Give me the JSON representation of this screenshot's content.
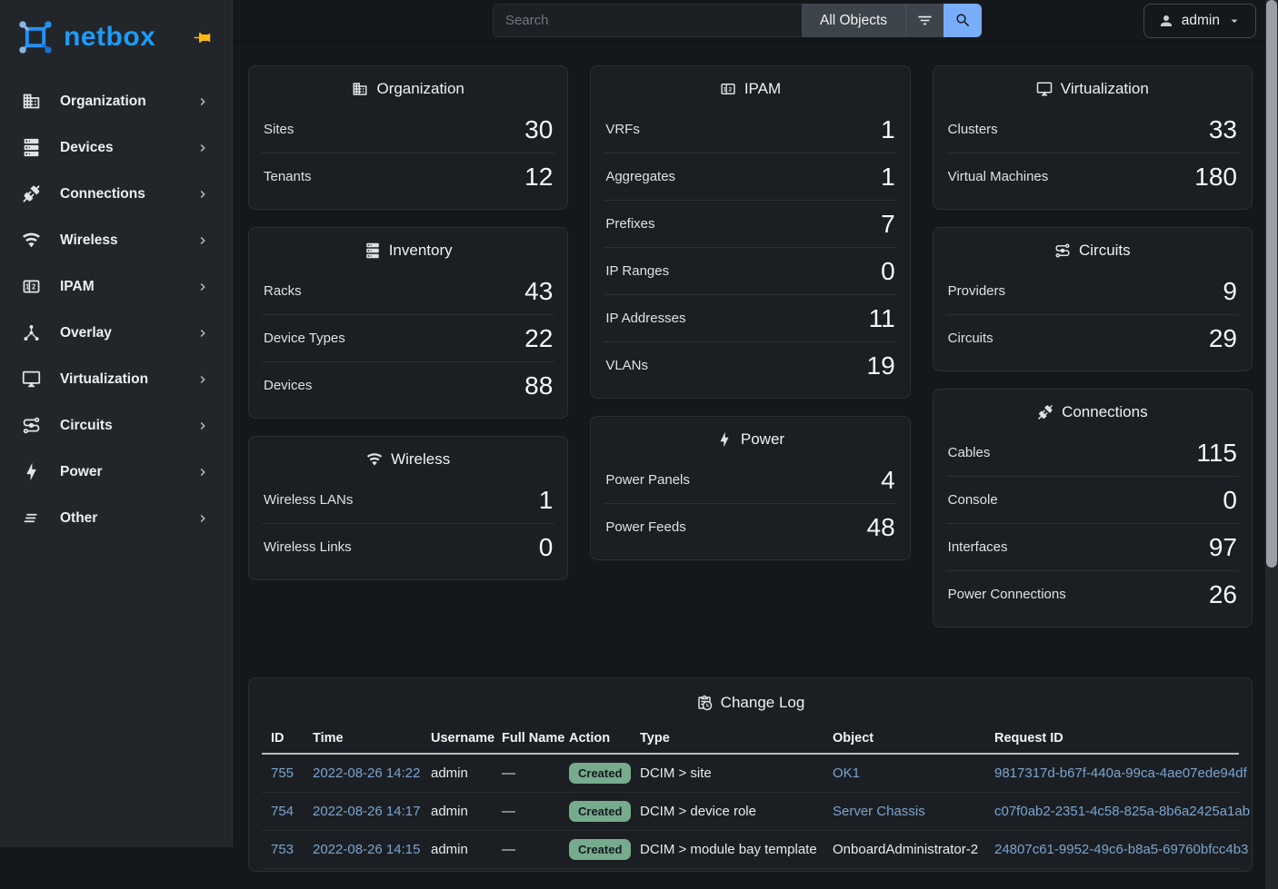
{
  "colors": {
    "logo_blue": "#1d9bf8",
    "pin_gold": "#fdb80b",
    "search_button_blue": "#79adfa",
    "link_blue": "#7ba4ce",
    "badge_green": "#76ab8d",
    "card_bg": "#1b1f23",
    "sidebar_bg": "#22262a",
    "page_bg": "#15181b"
  },
  "brand": {
    "name": "netbox"
  },
  "topbar": {
    "search_placeholder": "Search",
    "scope_button_label": "All Objects",
    "user_label": "admin"
  },
  "sidebar": {
    "items": [
      {
        "label": "Organization",
        "icon": "building"
      },
      {
        "label": "Devices",
        "icon": "server"
      },
      {
        "label": "Connections",
        "icon": "connection"
      },
      {
        "label": "Wireless",
        "icon": "wifi"
      },
      {
        "label": "IPAM",
        "icon": "counter"
      },
      {
        "label": "Overlay",
        "icon": "graph"
      },
      {
        "label": "Virtualization",
        "icon": "monitor"
      },
      {
        "label": "Circuits",
        "icon": "transit"
      },
      {
        "label": "Power",
        "icon": "bolt"
      },
      {
        "label": "Other",
        "icon": "lines"
      }
    ]
  },
  "dashboard": {
    "columns": [
      [
        {
          "key": "organization",
          "title": "Organization",
          "icon": "building",
          "rows": [
            {
              "label": "Sites",
              "value": "30"
            },
            {
              "label": "Tenants",
              "value": "12"
            }
          ]
        },
        {
          "key": "inventory",
          "title": "Inventory",
          "icon": "server",
          "rows": [
            {
              "label": "Racks",
              "value": "43"
            },
            {
              "label": "Device Types",
              "value": "22"
            },
            {
              "label": "Devices",
              "value": "88"
            }
          ]
        },
        {
          "key": "wireless",
          "title": "Wireless",
          "icon": "wifi",
          "rows": [
            {
              "label": "Wireless LANs",
              "value": "1"
            },
            {
              "label": "Wireless Links",
              "value": "0"
            }
          ]
        }
      ],
      [
        {
          "key": "ipam",
          "title": "IPAM",
          "icon": "counter",
          "rows": [
            {
              "label": "VRFs",
              "value": "1"
            },
            {
              "label": "Aggregates",
              "value": "1"
            },
            {
              "label": "Prefixes",
              "value": "7"
            },
            {
              "label": "IP Ranges",
              "value": "0"
            },
            {
              "label": "IP Addresses",
              "value": "11"
            },
            {
              "label": "VLANs",
              "value": "19"
            }
          ]
        },
        {
          "key": "power",
          "title": "Power",
          "icon": "bolt",
          "rows": [
            {
              "label": "Power Panels",
              "value": "4"
            },
            {
              "label": "Power Feeds",
              "value": "48"
            }
          ]
        }
      ],
      [
        {
          "key": "virtualization",
          "title": "Virtualization",
          "icon": "monitor",
          "rows": [
            {
              "label": "Clusters",
              "value": "33"
            },
            {
              "label": "Virtual Machines",
              "value": "180"
            }
          ]
        },
        {
          "key": "circuits",
          "title": "Circuits",
          "icon": "transit",
          "rows": [
            {
              "label": "Providers",
              "value": "9"
            },
            {
              "label": "Circuits",
              "value": "29"
            }
          ]
        },
        {
          "key": "connections",
          "title": "Connections",
          "icon": "connection",
          "rows": [
            {
              "label": "Cables",
              "value": "115"
            },
            {
              "label": "Console",
              "value": "0"
            },
            {
              "label": "Interfaces",
              "value": "97"
            },
            {
              "label": "Power Connections",
              "value": "26"
            }
          ]
        }
      ]
    ]
  },
  "change_log": {
    "title": "Change Log",
    "icon": "clipboard-clock",
    "headers": [
      "ID",
      "Time",
      "Username",
      "Full Name",
      "Action",
      "Type",
      "Object",
      "Request ID"
    ],
    "rows": [
      {
        "id": "755",
        "time": "2022-08-26 14:22",
        "username": "admin",
        "full_name": "—",
        "action": "Created",
        "type": "DCIM > site",
        "object": "OK1",
        "object_is_link": true,
        "request_id": "9817317d-b67f-440a-99ca-4ae07ede94df"
      },
      {
        "id": "754",
        "time": "2022-08-26 14:17",
        "username": "admin",
        "full_name": "—",
        "action": "Created",
        "type": "DCIM > device role",
        "object": "Server Chassis",
        "object_is_link": true,
        "request_id": "c07f0ab2-2351-4c58-825a-8b6a2425a1ab"
      },
      {
        "id": "753",
        "time": "2022-08-26 14:15",
        "username": "admin",
        "full_name": "—",
        "action": "Created",
        "type": "DCIM > module bay template",
        "object": "OnboardAdministrator-2",
        "object_is_link": false,
        "request_id": "24807c61-9952-49c6-b8a5-69760bfcc4b3"
      }
    ]
  }
}
